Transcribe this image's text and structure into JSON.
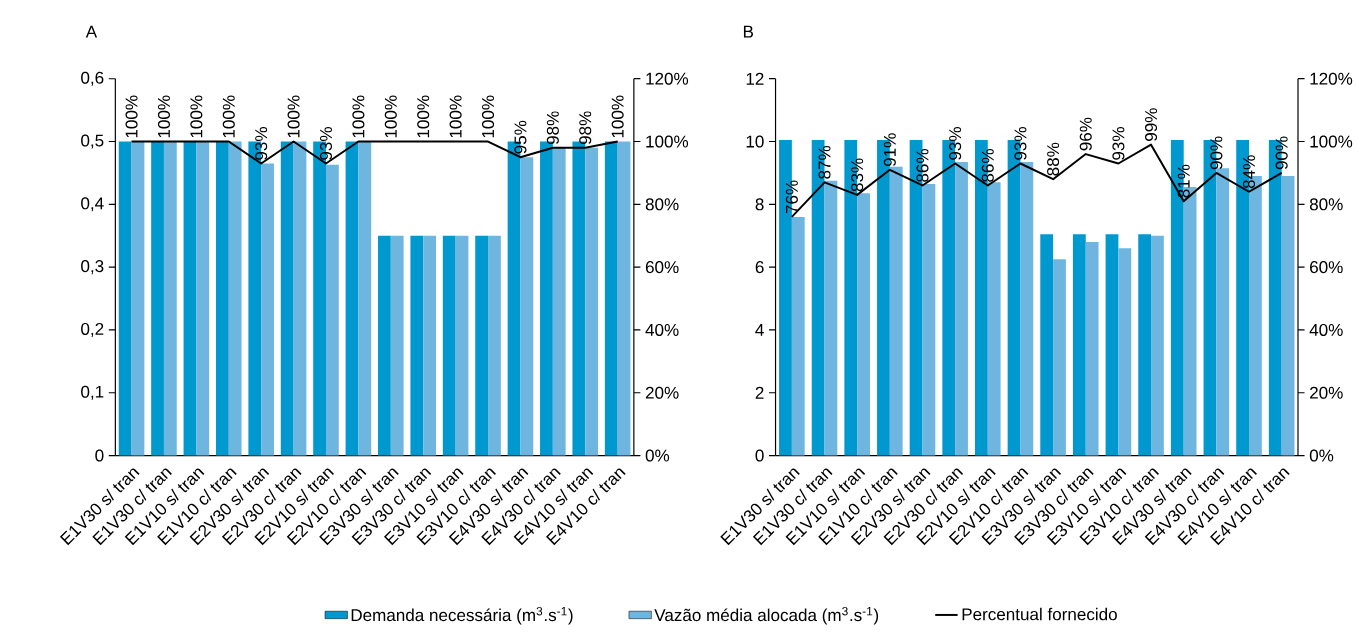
{
  "chart_data": [
    {
      "type": "bar",
      "title": "A",
      "categories": [
        "E1V30 s/ tran",
        "E1V30 c/ tran",
        "E1V10 s/ tran",
        "E1V10 c/ tran",
        "E2V30 s/ tran",
        "E2V30 c/ tran",
        "E2V10 s/ tran",
        "E2V10 c/ tran",
        "E3V30 s/ tran",
        "E3V30 c/ tran",
        "E3V10 s/ tran",
        "E3V10 c/ tran",
        "E4V30 s/ tran",
        "E4V30 c/ tran",
        "E4V10 s/ tran",
        "E4V10 c/ tran"
      ],
      "series": [
        {
          "name": "Demanda necessária (m$^{3}$.s$^{-1}$)",
          "color": "#0099cf",
          "values": [
            0.5,
            0.5,
            0.5,
            0.5,
            0.5,
            0.5,
            0.5,
            0.5,
            0.35,
            0.35,
            0.35,
            0.35,
            0.5,
            0.5,
            0.5,
            0.5
          ]
        },
        {
          "name": "Vazão média alocada (m$^{3}$.s$^{-1}$)",
          "color": "#6eb6e0",
          "values": [
            0.5,
            0.5,
            0.5,
            0.5,
            0.465,
            0.5,
            0.463,
            0.5,
            0.35,
            0.35,
            0.35,
            0.35,
            0.475,
            0.49,
            0.49,
            0.5
          ]
        },
        {
          "name": "Percentual fornecido",
          "type": "line",
          "axis": "y2",
          "color": "#000000",
          "values": [
            100,
            100,
            100,
            100,
            93,
            100,
            93,
            100,
            100,
            100,
            100,
            100,
            95,
            98,
            98,
            100
          ],
          "value_labels": [
            "100%",
            "100%",
            "100%",
            "100%",
            "93%",
            "100%",
            "93%",
            "100%",
            "100%",
            "100%",
            "100%",
            "100%",
            "95%",
            "98%",
            "98%",
            "100%"
          ]
        }
      ],
      "ylim": [
        0,
        0.6
      ],
      "yticks": [
        0,
        {
          "value": 0.1,
          "label": "0,1"
        },
        {
          "value": 0.2,
          "label": "0,2"
        },
        {
          "value": 0.3,
          "label": "0,3"
        },
        {
          "value": 0.4,
          "label": "0,4"
        },
        {
          "value": 0.5,
          "label": "0,5"
        },
        {
          "value": 0.6,
          "label": "0,6"
        }
      ],
      "y2lim": [
        0,
        120
      ],
      "y2ticks": [
        {
          "value": 0,
          "label": "0%"
        },
        {
          "value": 20,
          "label": "20%"
        },
        {
          "value": 40,
          "label": "40%"
        },
        {
          "value": 60,
          "label": "60%"
        },
        {
          "value": 80,
          "label": "80%"
        },
        {
          "value": 100,
          "label": "100%"
        },
        {
          "value": 120,
          "label": "120%"
        }
      ],
      "legend": "bottom"
    },
    {
      "type": "bar",
      "title": "B",
      "categories": [
        "E1V30 s/ tran",
        "E1V30 c/ tran",
        "E1V10 s/ tran",
        "E1V10 c/ tran",
        "E2V30 s/ tran",
        "E2V30 c/ tran",
        "E2V10 s/ tran",
        "E2V10 c/ tran",
        "E3V30 s/ tran",
        "E3V30 c/ tran",
        "E3V10 s/ tran",
        "E3V10 c/ tran",
        "E4V30 s/ tran",
        "E4V30 c/ tran",
        "E4V10 s/ tran",
        "E4V10 c/ tran"
      ],
      "series": [
        {
          "color": "#0099cf",
          "values": [
            10.05,
            10.05,
            10.05,
            10.05,
            10.05,
            10.05,
            10.05,
            10.05,
            7.05,
            7.05,
            7.05,
            7.05,
            10.05,
            10.05,
            10.05,
            10.05
          ]
        },
        {
          "color": "#6eb6e0",
          "values": [
            7.6,
            8.75,
            8.35,
            9.2,
            8.65,
            9.35,
            8.7,
            9.35,
            6.25,
            6.8,
            6.6,
            7.0,
            8.55,
            9.15,
            8.9,
            8.9
          ]
        },
        {
          "type": "line",
          "axis": "y2",
          "color": "#000000",
          "values": [
            76,
            87,
            83,
            91,
            86,
            93,
            86,
            93,
            88,
            96,
            93,
            99,
            81,
            90,
            84,
            90
          ],
          "value_labels": [
            "76%",
            "87%",
            "83%",
            "91%",
            "86%",
            "93%",
            "86%",
            "93%",
            "88%",
            "96%",
            "93%",
            "99%",
            "81%",
            "90%",
            "84%",
            "90%"
          ]
        }
      ],
      "ylim": [
        0,
        12
      ],
      "yticks": [
        0,
        2,
        4,
        6,
        8,
        10,
        12
      ],
      "y2lim": [
        0,
        120
      ],
      "y2ticks": [
        {
          "value": 0,
          "label": "0%"
        },
        {
          "value": 20,
          "label": "20%"
        },
        {
          "value": 40,
          "label": "40%"
        },
        {
          "value": 60,
          "label": "60%"
        },
        {
          "value": 80,
          "label": "80%"
        },
        {
          "value": 100,
          "label": "100%"
        },
        {
          "value": 120,
          "label": "120%"
        }
      ]
    }
  ]
}
